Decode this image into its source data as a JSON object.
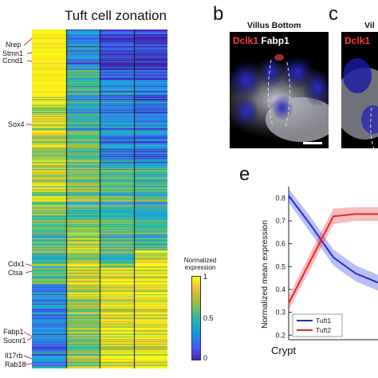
{
  "figure": {
    "heatmap_title": "Tuft cell zonation",
    "gene_labels": [
      "Nrep",
      "Stmn1",
      "Ccnd1",
      "Sox4",
      "Cdx1",
      "Ctsa",
      "Fabp1",
      "Sucnr1",
      "Il17rb",
      "Rab18"
    ],
    "colorbar": {
      "label_line1": "Normalized",
      "label_line2": "expression",
      "ticks": [
        "1",
        "0.5",
        "0"
      ]
    },
    "panel_b": {
      "letter": "b",
      "title": "Villus Bottom",
      "stain1": "Dclk1",
      "stain2": "Fabp1",
      "stain1_color": "#ff3a3a",
      "stain2_color": "#ffffff"
    },
    "panel_c": {
      "letter": "c",
      "title": "Vil",
      "stain1": "Dclk1",
      "stain1_color": "#ff3a3a"
    },
    "panel_e": {
      "letter": "e"
    },
    "colors": {
      "heat_low": "#3e26a8",
      "heat_mid": "#22b8af",
      "heat_high": "#f9fb15",
      "tuft1": "#1f2bd6",
      "tuft2": "#e8242b",
      "gene_marker": "#d93030"
    }
  },
  "chart_data": {
    "type": "line",
    "title": "",
    "xlabel": "Crypt",
    "ylabel": "Normalized mean expression",
    "x": [
      1,
      2,
      3,
      4,
      5
    ],
    "xlim": [
      1,
      5
    ],
    "ylim": [
      0.18,
      0.85
    ],
    "yticks": [
      "0.8",
      "0.7",
      "0.6",
      "0.5",
      "0.4",
      "0.3",
      "0.2"
    ],
    "ytick_values": [
      0.8,
      0.7,
      0.6,
      0.5,
      0.4,
      0.3,
      0.2
    ],
    "series": [
      {
        "name": "Tuft1",
        "values": [
          0.81,
          0.68,
          0.54,
          0.47,
          0.43
        ],
        "band": [
          0.03,
          0.035,
          0.035,
          0.035,
          0.035
        ]
      },
      {
        "name": "Tuft2",
        "values": [
          0.34,
          0.53,
          0.72,
          0.73,
          0.73
        ],
        "band": [
          0.03,
          0.035,
          0.035,
          0.03,
          0.03
        ]
      }
    ],
    "legend_position": "bottom-left"
  }
}
